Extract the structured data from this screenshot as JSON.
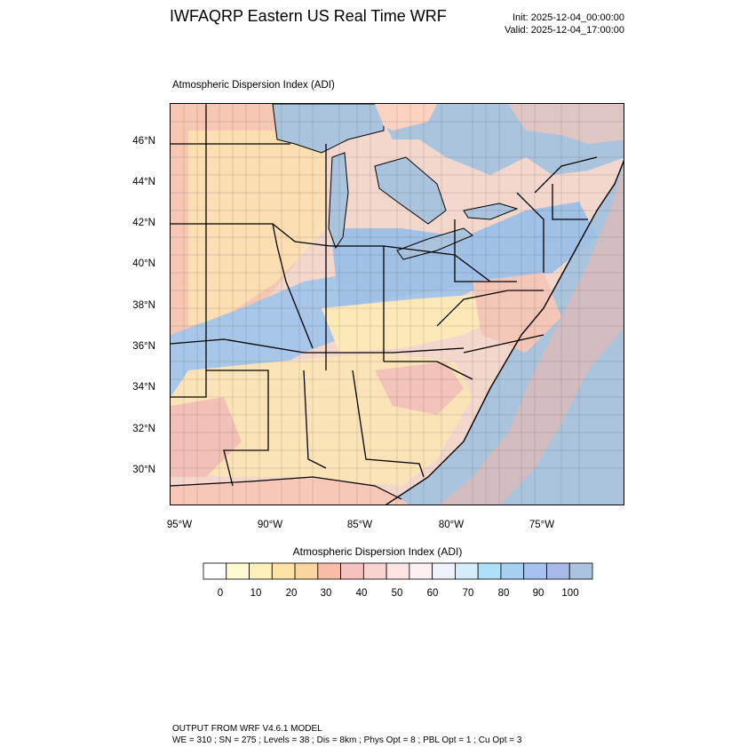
{
  "header": {
    "title": "IWFAQRP Eastern US Real Time WRF",
    "init": "Init: 2025-12-04_00:00:00",
    "valid": "Valid: 2025-12-04_17:00:00"
  },
  "map": {
    "plot_label": "Atmospheric Dispersion Index   (ADI)",
    "lat_labels": [
      "46°N",
      "44°N",
      "42°N",
      "40°N",
      "38°N",
      "36°N",
      "34°N",
      "32°N",
      "30°N"
    ],
    "lon_labels": [
      "95°W",
      "90°W",
      "85°W",
      "80°W",
      "75°W"
    ],
    "colors": {
      "water": "#a9c4dc",
      "low": "#fff8c8",
      "mid": "#f6c7b8",
      "high": "#9fc1e4"
    }
  },
  "colorbar": {
    "title": "Atmospheric Dispersion Index  (ADI)",
    "ticks": [
      "0",
      "10",
      "20",
      "30",
      "40",
      "50",
      "60",
      "70",
      "80",
      "90",
      "100"
    ],
    "colors": [
      "#ffffff",
      "#fffad0",
      "#fff1b8",
      "#fde3a4",
      "#fbd5a0",
      "#f8bda8",
      "#f5c2c0",
      "#f8d3d0",
      "#fbe4e2",
      "#fdf0f2",
      "#eef2fb",
      "#d6ecfa",
      "#aee0f7",
      "#a6cff2",
      "#a7c2ee",
      "#a7b9e6",
      "#a9c4dc"
    ]
  },
  "footer": {
    "line1": "OUTPUT FROM WRF V4.6.1 MODEL",
    "line2": "WE = 310 ; SN = 275 ; Levels = 38 ; Dis = 8km ; Phys Opt = 8 ; PBL Opt = 1 ; Cu Opt = 3"
  }
}
